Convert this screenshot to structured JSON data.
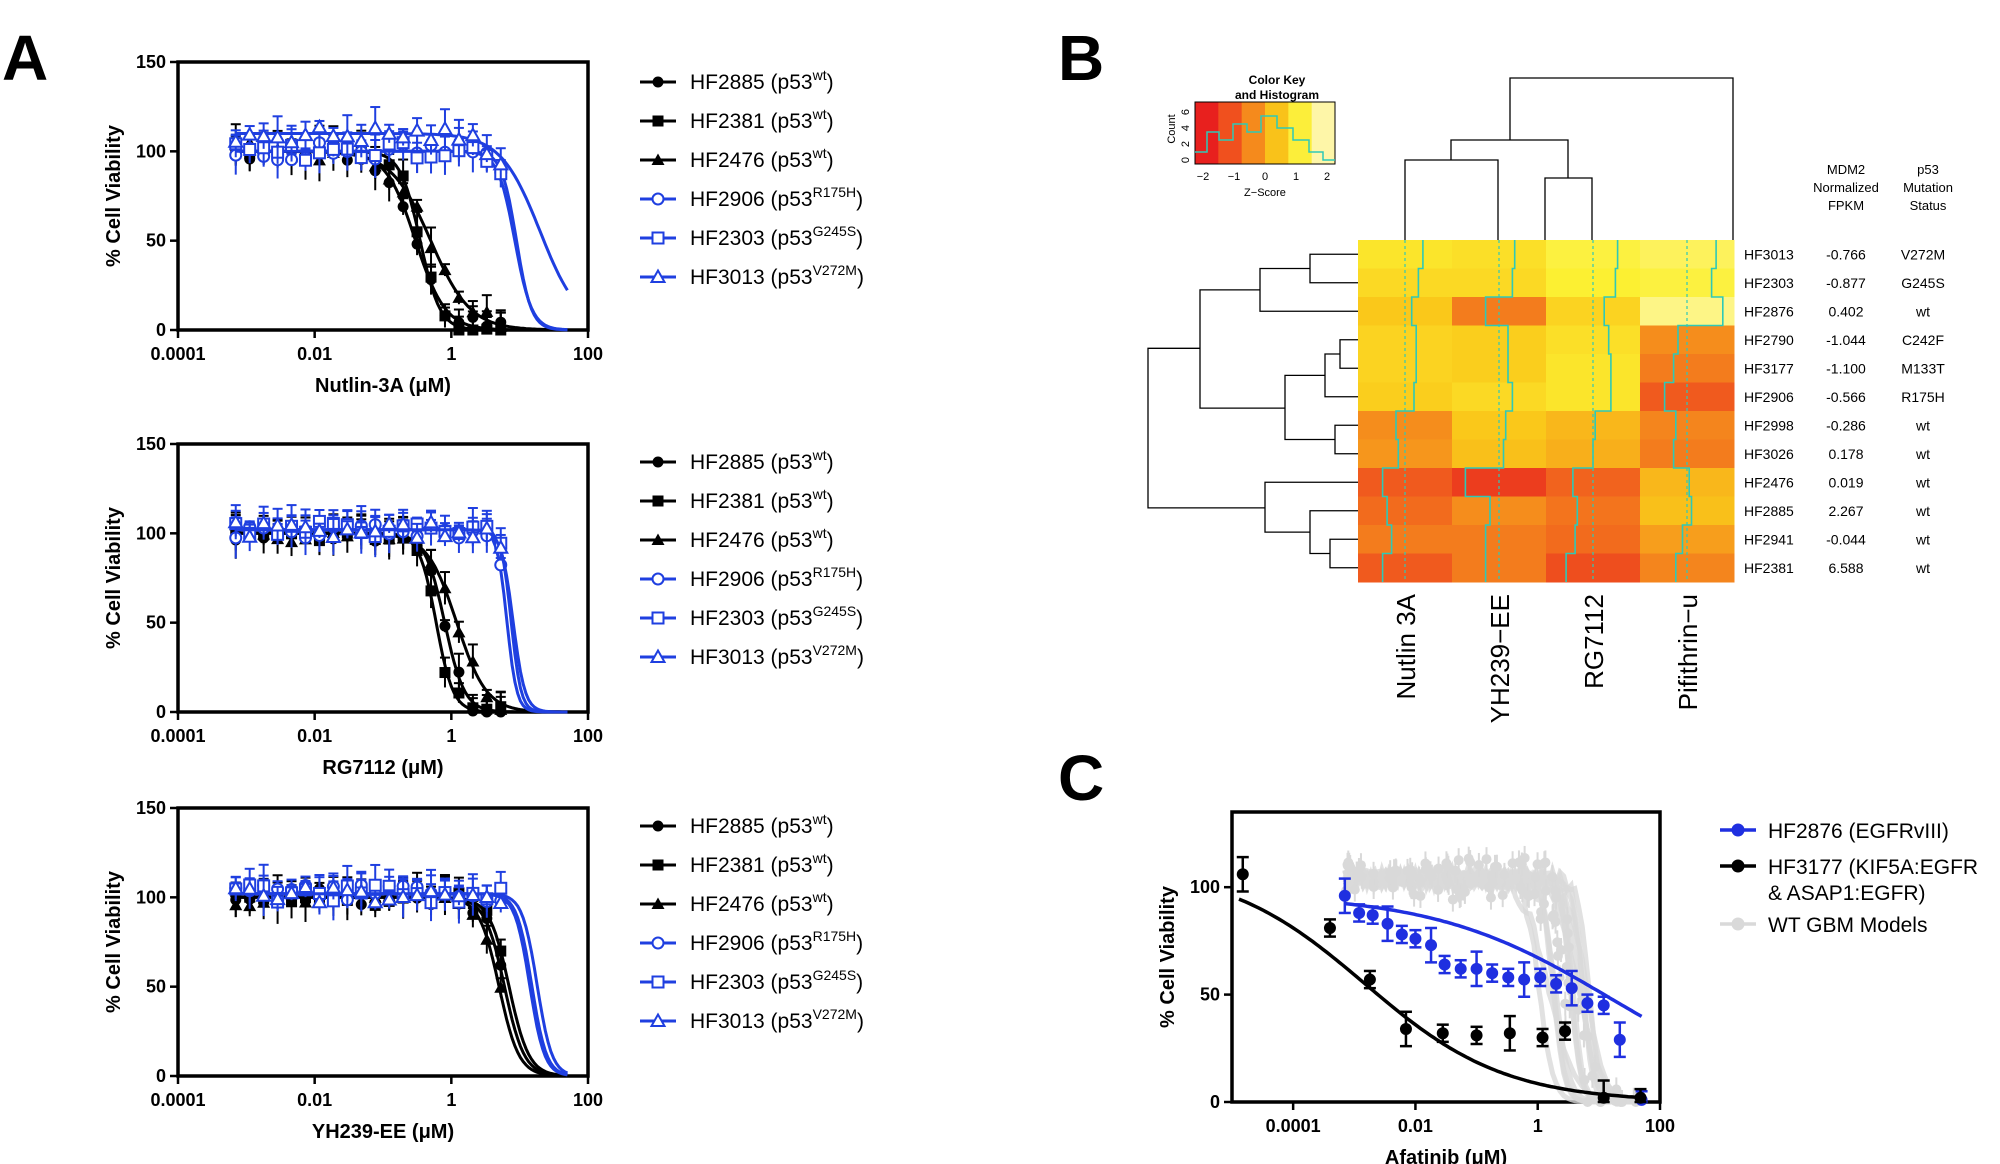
{
  "panel_labels": [
    "A",
    "B",
    "C"
  ],
  "chart_data": [
    {
      "panel": "A",
      "type": "line",
      "xscale": "log",
      "xlabel": "Nutlin-3A (μM)",
      "ylabel": "% Cell Viability",
      "xlim": [
        0.0001,
        100
      ],
      "ylim": [
        0,
        150
      ],
      "xticks": [
        "0.0001",
        "0.01",
        "1",
        "100"
      ],
      "yticks": [
        "0",
        "50",
        "100",
        "150"
      ],
      "grid": false,
      "legend_position": "right",
      "series": [
        {
          "name": "HF2885",
          "label_sup": "wt",
          "color": "#000000",
          "marker": "circle",
          "ic50": 0.3,
          "hill": 2.0,
          "top": 100
        },
        {
          "name": "HF2381",
          "label_sup": "wt",
          "color": "#000000",
          "marker": "square",
          "ic50": 0.35,
          "hill": 3.0,
          "top": 100
        },
        {
          "name": "HF2476",
          "label_sup": "wt",
          "color": "#000000",
          "marker": "triangle",
          "ic50": 0.5,
          "hill": 1.5,
          "top": 100
        },
        {
          "name": "HF2906",
          "label_sup": "R175H",
          "color": "#1f3fe0",
          "marker": "circle-open",
          "ic50": 9,
          "hill": 4.0,
          "top": 100
        },
        {
          "name": "HF2303",
          "label_sup": "G245S",
          "color": "#1f3fe0",
          "marker": "square-open",
          "ic50": 8.5,
          "hill": 3.5,
          "top": 100
        },
        {
          "name": "HF3013",
          "label_sup": "V272M",
          "color": "#1f3fe0",
          "marker": "triangle-open",
          "ic50": 20,
          "hill": 1.5,
          "top": 110
        }
      ]
    },
    {
      "panel": "A",
      "type": "line",
      "xscale": "log",
      "xlabel": "RG7112 (μM)",
      "ylabel": "% Cell Viability",
      "xlim": [
        0.0001,
        100
      ],
      "ylim": [
        0,
        150
      ],
      "xticks": [
        "0.0001",
        "0.01",
        "1",
        "100"
      ],
      "yticks": [
        "0",
        "50",
        "100",
        "150"
      ],
      "grid": false,
      "legend_position": "right",
      "series": [
        {
          "name": "HF2885",
          "label_sup": "wt",
          "color": "#000000",
          "marker": "circle",
          "ic50": 0.8,
          "hill": 3.0,
          "top": 100
        },
        {
          "name": "HF2381",
          "label_sup": "wt",
          "color": "#000000",
          "marker": "square",
          "ic50": 0.6,
          "hill": 3.5,
          "top": 100
        },
        {
          "name": "HF2476",
          "label_sup": "wt",
          "color": "#000000",
          "marker": "triangle",
          "ic50": 1.2,
          "hill": 2.0,
          "top": 100
        },
        {
          "name": "HF2906",
          "label_sup": "R175H",
          "color": "#1f3fe0",
          "marker": "circle-open",
          "ic50": 6.5,
          "hill": 6.0,
          "top": 102
        },
        {
          "name": "HF2303",
          "label_sup": "G245S",
          "color": "#1f3fe0",
          "marker": "square-open",
          "ic50": 7.5,
          "hill": 6.0,
          "top": 102
        },
        {
          "name": "HF3013",
          "label_sup": "V272M",
          "color": "#1f3fe0",
          "marker": "triangle-open",
          "ic50": 8.0,
          "hill": 5.0,
          "top": 102
        }
      ]
    },
    {
      "panel": "A",
      "type": "line",
      "xscale": "log",
      "xlabel": "YH239-EE (μM)",
      "ylabel": "% Cell Viability",
      "xlim": [
        0.0001,
        100
      ],
      "ylim": [
        0,
        150
      ],
      "xticks": [
        "0.0001",
        "0.01",
        "1",
        "100"
      ],
      "yticks": [
        "0",
        "50",
        "100",
        "150"
      ],
      "grid": false,
      "legend_position": "right",
      "series": [
        {
          "name": "HF2885",
          "label_sup": "wt",
          "color": "#000000",
          "marker": "circle",
          "ic50": 6,
          "hill": 3.0,
          "top": 100
        },
        {
          "name": "HF2381",
          "label_sup": "wt",
          "color": "#000000",
          "marker": "square",
          "ic50": 7,
          "hill": 3.0,
          "top": 100
        },
        {
          "name": "HF2476",
          "label_sup": "wt",
          "color": "#000000",
          "marker": "triangle",
          "ic50": 5,
          "hill": 3.0,
          "top": 100
        },
        {
          "name": "HF2906",
          "label_sup": "R175H",
          "color": "#1f3fe0",
          "marker": "circle-open",
          "ic50": 15,
          "hill": 4.0,
          "top": 102
        },
        {
          "name": "HF2303",
          "label_sup": "G245S",
          "color": "#1f3fe0",
          "marker": "square-open",
          "ic50": 18,
          "hill": 4.0,
          "top": 102
        },
        {
          "name": "HF3013",
          "label_sup": "V272M",
          "color": "#1f3fe0",
          "marker": "triangle-open",
          "ic50": 14,
          "hill": 4.0,
          "top": 102
        }
      ]
    },
    {
      "panel": "B",
      "type": "heatmap",
      "columns": [
        "Nutlin 3A",
        "YH239−EE",
        "RG7112",
        "Pifithrin−u"
      ],
      "rows": [
        "HF3013",
        "HF2303",
        "HF2876",
        "HF2790",
        "HF3177",
        "HF2906",
        "HF2998",
        "HF3026",
        "HF2476",
        "HF2885",
        "HF2941",
        "HF2381"
      ],
      "values": [
        [
          0.8,
          0.7,
          1.1,
          1.3
        ],
        [
          0.6,
          0.6,
          1.0,
          1.1
        ],
        [
          0.3,
          -0.6,
          0.5,
          1.6
        ],
        [
          0.5,
          0.4,
          0.7,
          -0.4
        ],
        [
          0.5,
          0.4,
          0.8,
          -0.6
        ],
        [
          0.4,
          0.6,
          0.8,
          -1.0
        ],
        [
          -0.4,
          0.3,
          0.1,
          -0.5
        ],
        [
          -0.3,
          0.2,
          0.0,
          -0.6
        ],
        [
          -1.0,
          -1.5,
          -0.9,
          0.1
        ],
        [
          -0.8,
          -0.4,
          -0.7,
          0.2
        ],
        [
          -0.6,
          -0.6,
          -0.8,
          -0.2
        ],
        [
          -1.0,
          -0.6,
          -1.2,
          -0.5
        ]
      ],
      "extra_columns": {
        "header1": [
          "MDM2",
          "Normalized",
          "FPKM"
        ],
        "header2": [
          "p53",
          "Mutation",
          "Status"
        ],
        "mdm2_fpkm": [
          "-0.766",
          "-0.877",
          "0.402",
          "-1.044",
          "-1.100",
          "-0.566",
          "-0.286",
          "0.178",
          "0.019",
          "2.267",
          "-0.044",
          "6.588"
        ],
        "p53_status": [
          "V272M",
          "G245S",
          "wt",
          "C242F",
          "M133T",
          "R175H",
          "wt",
          "wt",
          "wt",
          "wt",
          "wt",
          "wt"
        ]
      },
      "color_key": {
        "title_line1": "Color Key",
        "title_line2": "and Histogram",
        "xlabel": "Z−Score",
        "ylabel": "Count",
        "xticks": [
          "−2",
          "−1",
          "0",
          "1",
          "2"
        ],
        "yticks": [
          "0",
          "2",
          "4",
          "6"
        ],
        "colors": [
          "#e8201e",
          "#f0501e",
          "#f58a1c",
          "#f9c21a",
          "#fcee3a",
          "#fef6a8"
        ]
      },
      "trace_color": "#2ec9b7"
    },
    {
      "panel": "C",
      "type": "scatter",
      "xscale": "log",
      "xlabel": "Afatinib (μM)",
      "ylabel": "% Cell Viability",
      "xlim": [
        1e-05,
        100
      ],
      "ylim": [
        0,
        135
      ],
      "xticks": [
        "0.0001",
        "0.01",
        "1",
        "100"
      ],
      "yticks": [
        "0",
        "50",
        "100"
      ],
      "grid": false,
      "legend_position": "right",
      "series": [
        {
          "name": "HF2876 (EGFRvIII)",
          "color": "#1f2fe0",
          "x": [
            0.0007,
            0.0012,
            0.002,
            0.0035,
            0.006,
            0.01,
            0.018,
            0.03,
            0.055,
            0.1,
            0.18,
            0.33,
            0.6,
            1.1,
            2,
            3.6,
            6.5,
            12,
            22,
            50
          ],
          "y": [
            96,
            88,
            87,
            83,
            78,
            76,
            73,
            64,
            62,
            62,
            60,
            58,
            57,
            58,
            55,
            53,
            46,
            45,
            29,
            1
          ],
          "fit_top": 97,
          "fit_ic50": 15,
          "fit_hill": 0.3
        },
        {
          "name": "HF3177 (KIF5A:EGFR",
          "name_line2": "& ASAP1:EGFR)",
          "color": "#000000",
          "x": [
            1.5e-05,
            0.0004,
            0.0018,
            0.007,
            0.028,
            0.1,
            0.35,
            1.2,
            2.8,
            12,
            48
          ],
          "y": [
            106,
            81,
            57,
            34,
            32,
            31,
            32,
            30,
            33,
            2,
            2
          ],
          "fit_top": 110,
          "fit_ic50": 0.0015,
          "fit_hill": 0.38
        },
        {
          "name": "WT GBM Models",
          "color": "#d9d9d9"
        }
      ]
    }
  ]
}
